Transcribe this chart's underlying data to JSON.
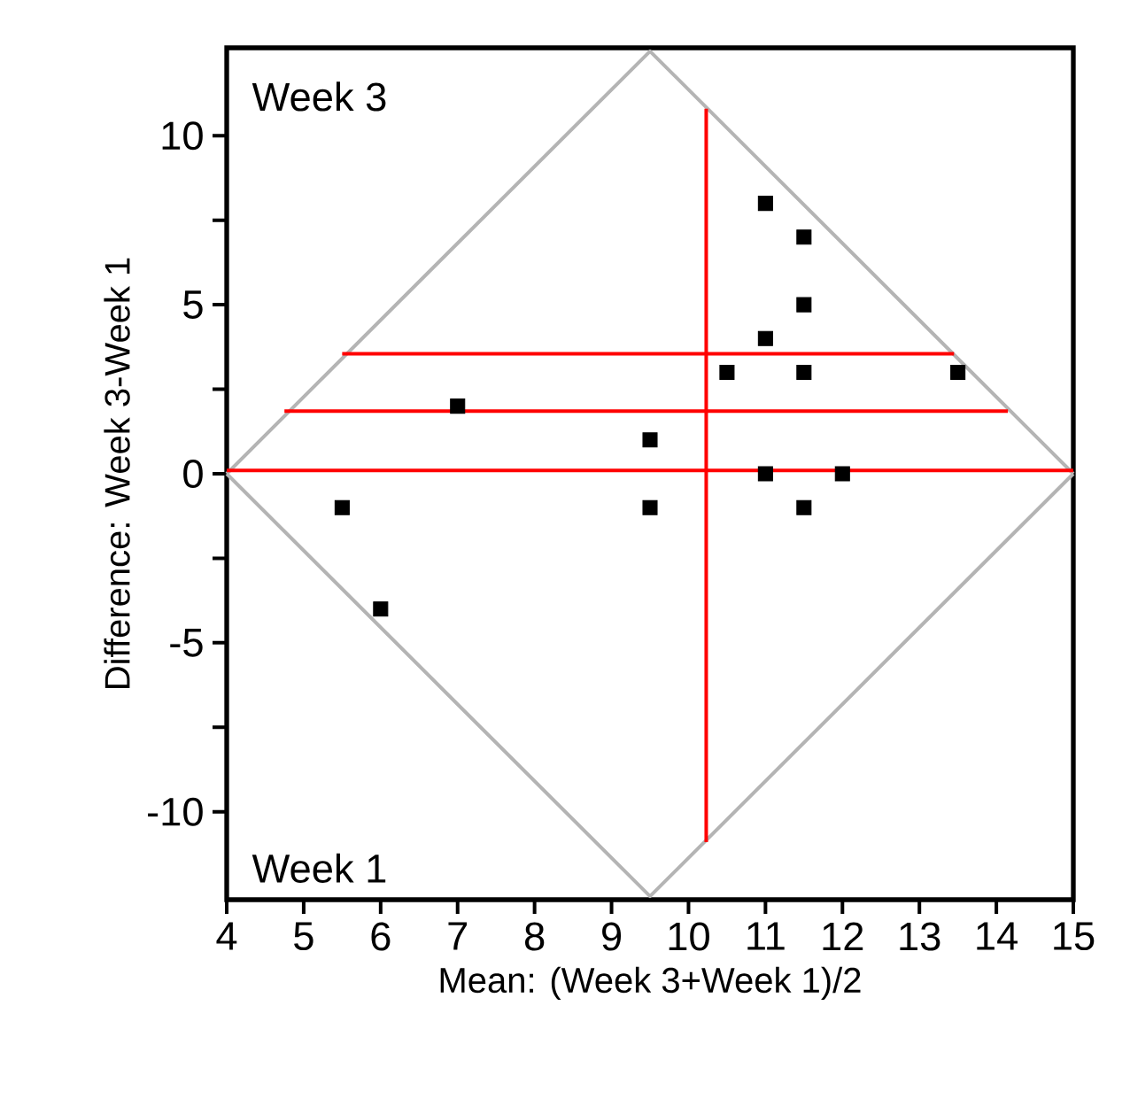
{
  "chart_data": {
    "type": "scatter",
    "xlabel": "Mean: (Week 3+Week 1)/2",
    "ylabel": "Difference: Week 3-Week 1",
    "annotations": [
      "Week 3",
      "Week 1"
    ],
    "xlim": [
      4,
      15
    ],
    "ylim": [
      -12.6,
      12.6
    ],
    "xticks": [
      4,
      5,
      6,
      7,
      8,
      9,
      10,
      11,
      12,
      13,
      14,
      15
    ],
    "yticks": [
      -10,
      {
        "value": -7.5,
        "label": null
      },
      -5,
      {
        "value": -2.5,
        "label": null
      },
      0,
      {
        "value": 2.5,
        "label": null
      },
      5,
      {
        "value": 7.5,
        "label": null
      },
      10
    ],
    "series": [
      {
        "type": "line",
        "color": "#b4b4b4",
        "marker": "none",
        "x": [
          4,
          9.5,
          15
        ],
        "values": [
          0,
          12.5,
          0
        ]
      },
      {
        "type": "line",
        "color": "#b4b4b4",
        "marker": "none",
        "x": [
          4,
          9.5,
          15
        ],
        "values": [
          0,
          -12.5,
          0
        ]
      },
      {
        "type": "line",
        "color": "#ff0000",
        "marker": "none",
        "x": [
          4,
          15
        ],
        "values": [
          0.1,
          0.1
        ]
      },
      {
        "type": "line",
        "color": "#ff0000",
        "marker": "none",
        "x": [
          4.75,
          14.15
        ],
        "values": [
          1.85,
          1.85
        ]
      },
      {
        "type": "line",
        "color": "#ff0000",
        "marker": "none",
        "x": [
          5.5,
          13.45
        ],
        "values": [
          3.55,
          3.55
        ]
      },
      {
        "type": "line",
        "color": "#ff0000",
        "marker": "none",
        "x": [
          10.23,
          10.23
        ],
        "values": [
          -10.9,
          10.8
        ]
      },
      {
        "color": "#000000",
        "marker": "square",
        "x": [
          11,
          11.5,
          11.5,
          11,
          10.5,
          11.5,
          13.5,
          7,
          9.5,
          11,
          12,
          5.5,
          9.5,
          11.5,
          6
        ],
        "values": [
          8,
          7,
          5,
          4,
          3,
          3,
          3,
          2,
          1,
          0,
          0,
          -1,
          -1,
          -1,
          -4
        ]
      }
    ]
  }
}
